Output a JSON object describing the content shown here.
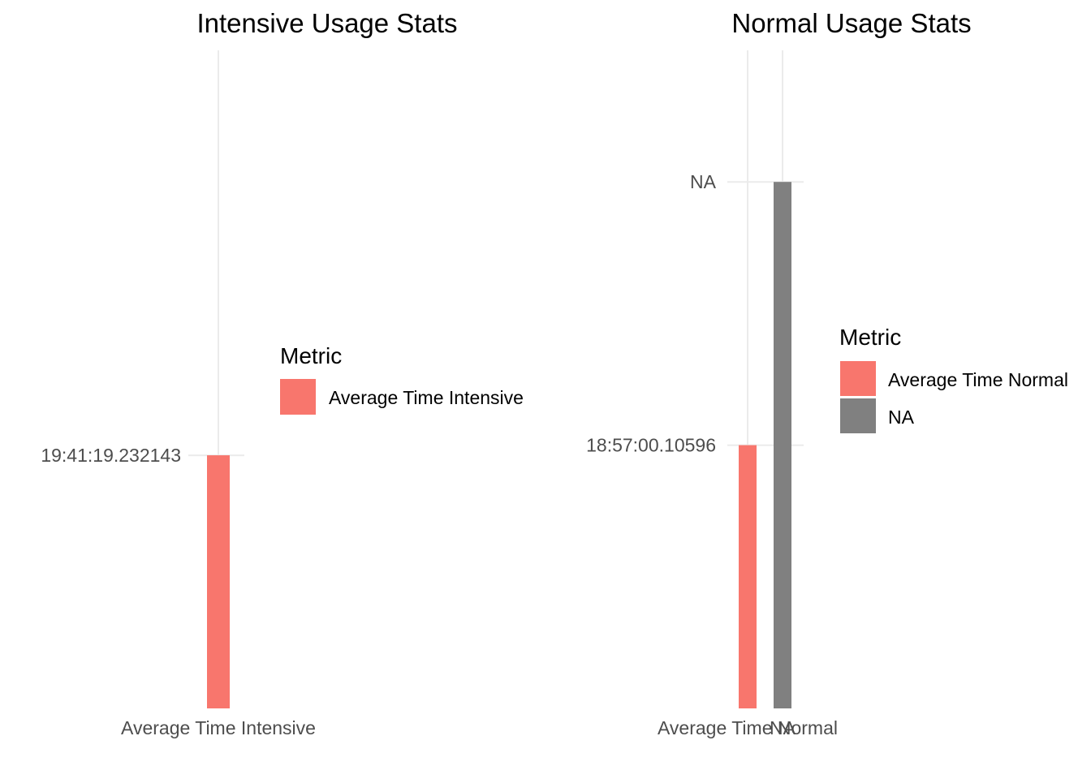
{
  "chart_data": [
    {
      "type": "bar",
      "title": "Intensive Usage Stats",
      "xlabel": "",
      "ylabel": "",
      "categories": [
        "Average Time Intensive"
      ],
      "bars": [
        {
          "category": "Average Time Intensive",
          "label": "19:41:19.232143",
          "value": 1.0,
          "fill": "#F8766D"
        }
      ],
      "y_tick_labels": [
        "19:41:19.232143"
      ],
      "grid": true,
      "legend": {
        "title": "Metric",
        "position": "right",
        "entries": [
          {
            "label": "Average Time Intensive",
            "color": "#F8766D"
          }
        ]
      }
    },
    {
      "type": "bar",
      "title": "Normal Usage Stats",
      "xlabel": "",
      "ylabel": "",
      "categories": [
        "Average Time Normal",
        "NA"
      ],
      "bars": [
        {
          "category": "Average Time Normal",
          "label": "18:57:00.10596",
          "value": 1.0,
          "fill": "#F8766D"
        },
        {
          "category": "NA",
          "label": "NA",
          "value": 2.0,
          "fill": "#808080"
        }
      ],
      "y_tick_labels": [
        "18:57:00.10596",
        "NA"
      ],
      "grid": true,
      "legend": {
        "title": "Metric",
        "position": "right",
        "entries": [
          {
            "label": "Average Time Normal",
            "color": "#F8766D"
          },
          {
            "label": "NA",
            "color": "#808080"
          }
        ]
      }
    }
  ]
}
